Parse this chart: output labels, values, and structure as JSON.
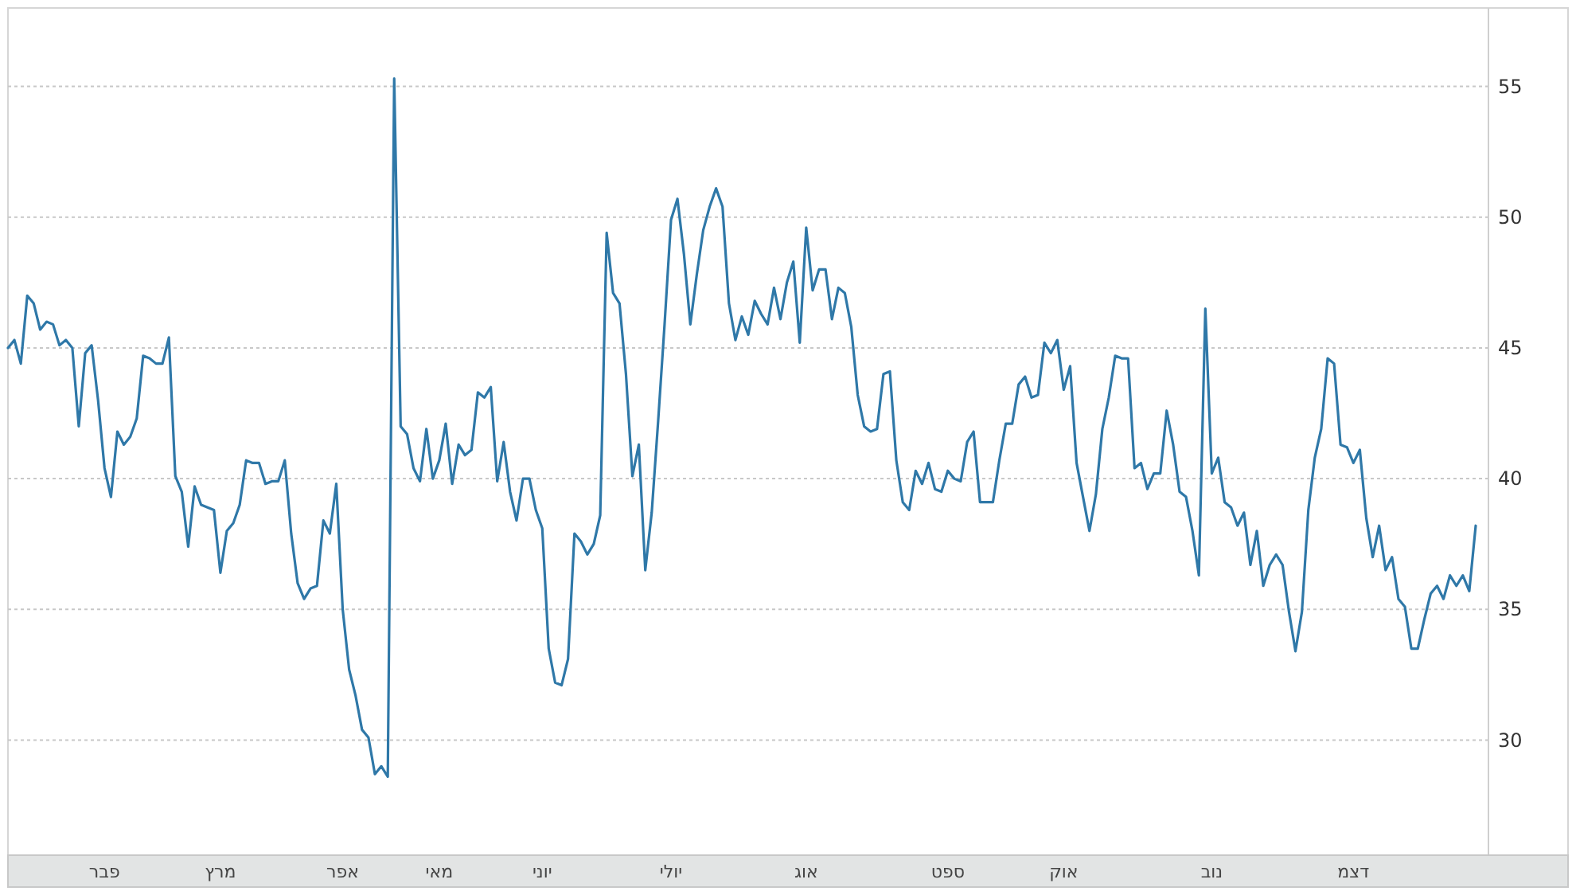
{
  "chart_data": {
    "type": "line",
    "grid": "y",
    "marker": "none",
    "line_style": "solid",
    "ylim": [
      25.6,
      58
    ],
    "yticks": [
      30,
      35,
      40,
      45,
      50,
      55
    ],
    "categories": [
      null,
      null,
      null,
      null,
      null,
      null,
      null,
      null,
      null,
      null,
      null,
      null,
      null,
      null,
      null,
      "פבר",
      null,
      null,
      null,
      null,
      null,
      null,
      null,
      null,
      null,
      null,
      null,
      null,
      null,
      null,
      null,
      null,
      null,
      "מרץ",
      null,
      null,
      null,
      null,
      null,
      null,
      null,
      null,
      null,
      null,
      null,
      null,
      null,
      null,
      null,
      null,
      null,
      null,
      "אפר",
      null,
      null,
      null,
      null,
      null,
      null,
      null,
      null,
      null,
      null,
      null,
      null,
      null,
      null,
      "מאי",
      null,
      null,
      null,
      null,
      null,
      null,
      null,
      null,
      null,
      null,
      null,
      null,
      null,
      null,
      null,
      "יוני",
      null,
      null,
      null,
      null,
      null,
      null,
      null,
      null,
      null,
      null,
      null,
      null,
      null,
      null,
      null,
      null,
      null,
      null,
      null,
      "יולי",
      null,
      null,
      null,
      null,
      null,
      null,
      null,
      null,
      null,
      null,
      null,
      null,
      null,
      null,
      null,
      null,
      null,
      null,
      null,
      null,
      "אוג",
      null,
      null,
      null,
      null,
      null,
      null,
      null,
      null,
      null,
      null,
      null,
      null,
      null,
      null,
      null,
      null,
      null,
      null,
      null,
      null,
      null,
      "ספט",
      null,
      null,
      null,
      null,
      null,
      null,
      null,
      null,
      null,
      null,
      null,
      null,
      null,
      null,
      null,
      null,
      null,
      "אוק",
      null,
      null,
      null,
      null,
      null,
      null,
      null,
      null,
      null,
      null,
      null,
      null,
      null,
      null,
      null,
      null,
      null,
      null,
      null,
      null,
      null,
      null,
      "נוב",
      null,
      null,
      null,
      null,
      null,
      null,
      null,
      null,
      null,
      null,
      null,
      null,
      null,
      null,
      null,
      null,
      null,
      null,
      null,
      null,
      null,
      "דצמ",
      null,
      null,
      null,
      null,
      null,
      null,
      null,
      null,
      null,
      null,
      null,
      null,
      null,
      null,
      null,
      null,
      null,
      null,
      null
    ],
    "series": [
      {
        "color": "#2f78a8",
        "values": [
          45.0,
          45.3,
          44.4,
          47.0,
          46.7,
          45.7,
          46.0,
          45.9,
          45.1,
          45.3,
          45.0,
          42.0,
          44.8,
          45.1,
          43.0,
          40.4,
          39.3,
          41.8,
          41.3,
          41.6,
          42.3,
          44.7,
          44.6,
          44.4,
          44.4,
          45.4,
          40.1,
          39.5,
          37.4,
          39.7,
          39.0,
          38.9,
          38.8,
          36.4,
          38.0,
          38.3,
          39.0,
          40.7,
          40.6,
          40.6,
          39.8,
          39.9,
          39.9,
          40.7,
          37.9,
          36.0,
          35.4,
          35.8,
          35.9,
          38.4,
          37.9,
          39.8,
          35.0,
          32.7,
          31.7,
          30.4,
          30.1,
          28.7,
          29.0,
          28.6,
          55.3,
          42.0,
          41.7,
          40.4,
          39.9,
          41.9,
          40.0,
          40.7,
          42.1,
          39.8,
          41.3,
          40.9,
          41.1,
          43.3,
          43.1,
          43.5,
          39.9,
          41.4,
          39.5,
          38.4,
          40.0,
          40.0,
          38.8,
          38.1,
          33.5,
          32.2,
          32.1,
          33.1,
          37.9,
          37.6,
          37.1,
          37.5,
          38.6,
          49.4,
          47.1,
          46.7,
          44.0,
          40.1,
          41.3,
          36.5,
          38.7,
          42.2,
          45.9,
          49.9,
          50.7,
          48.6,
          45.9,
          47.8,
          49.5,
          50.4,
          51.1,
          50.4,
          46.7,
          45.3,
          46.2,
          45.5,
          46.8,
          46.3,
          45.9,
          47.3,
          46.1,
          47.5,
          48.3,
          45.2,
          49.6,
          47.2,
          48.0,
          48.0,
          46.1,
          47.3,
          47.1,
          45.8,
          43.2,
          42.0,
          41.8,
          41.9,
          44.0,
          44.1,
          40.7,
          39.1,
          38.8,
          40.3,
          39.8,
          40.6,
          39.6,
          39.5,
          40.3,
          40.0,
          39.9,
          41.4,
          41.8,
          39.1,
          39.1,
          39.1,
          40.7,
          42.1,
          42.1,
          43.6,
          43.9,
          43.1,
          43.2,
          45.2,
          44.8,
          45.3,
          43.4,
          44.3,
          40.6,
          39.3,
          38.0,
          39.4,
          41.9,
          43.1,
          44.7,
          44.6,
          44.6,
          40.4,
          40.6,
          39.6,
          40.2,
          40.2,
          42.6,
          41.3,
          39.5,
          39.3,
          38.0,
          36.3,
          46.5,
          40.2,
          40.8,
          39.1,
          38.9,
          38.2,
          38.7,
          36.7,
          38.0,
          35.9,
          36.7,
          37.1,
          36.7,
          34.9,
          33.4,
          34.9,
          38.8,
          40.8,
          41.9,
          44.6,
          44.4,
          41.3,
          41.2,
          40.6,
          41.1,
          38.5,
          37.0,
          38.2,
          36.5,
          37.0,
          35.4,
          35.1,
          33.5,
          33.5,
          34.6,
          35.6,
          35.9,
          35.4,
          36.3,
          35.9,
          36.3,
          35.7,
          38.2
        ]
      }
    ]
  }
}
